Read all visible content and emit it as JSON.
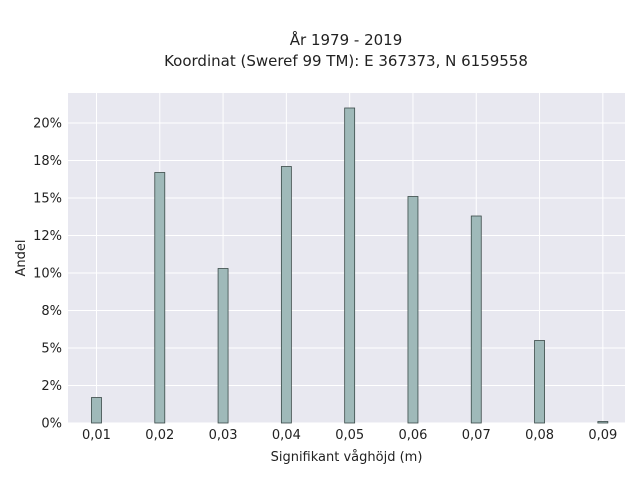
{
  "chart_data": {
    "type": "bar",
    "title": [
      "År 1979 - 2019",
      "Koordinat (Sweref 99 TM): E 367373, N 6159558"
    ],
    "xlabel": "Signifikant våghöjd (m)",
    "ylabel": "Andel",
    "x_ticks": [
      "0,01",
      "0,02",
      "0,03",
      "0,04",
      "0,05",
      "0,06",
      "0,07",
      "0,08",
      "0,09"
    ],
    "y_ticks": [
      "0%",
      "2%",
      "5%",
      "8%",
      "10%",
      "12%",
      "15%",
      "18%",
      "20%"
    ],
    "x": [
      0.01,
      0.02,
      0.03,
      0.04,
      0.05,
      0.06,
      0.07,
      0.08,
      0.09
    ],
    "values": [
      1.7,
      16.7,
      10.3,
      17.1,
      21.0,
      15.1,
      13.8,
      5.5,
      0.1
    ],
    "xlim": [
      0.0055,
      0.0935
    ],
    "ylim": [
      0,
      22
    ],
    "y_tick_values": [
      0,
      2.5,
      5,
      7.5,
      10,
      12.5,
      15,
      17.5,
      20
    ],
    "grid": true,
    "colors": {
      "plot_background": "#e8e8f0",
      "grid": "#ffffff",
      "bar_fill": "#9fb9b9",
      "bar_stroke": "#3a4a48"
    }
  }
}
